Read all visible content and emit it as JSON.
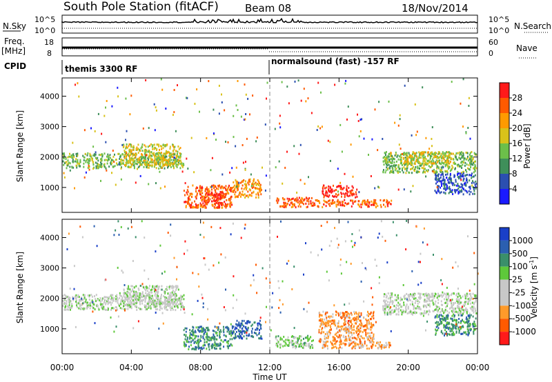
{
  "header": {
    "title": "South Pole Station (fitACF)",
    "beam": "Beam 08",
    "date": "18/Nov/2014"
  },
  "meta_panels": {
    "nsky_label": "N.Sky",
    "nsky_ticks": [
      "10^5",
      "10^0"
    ],
    "nsearch_label": "N.Search",
    "freq_label": "Freq.",
    "freq_unit": "[MHz]",
    "freq_ticks": [
      "18",
      "8"
    ],
    "nave_label": "Nave",
    "nave_ticks": [
      "60",
      "0"
    ],
    "cpid_label": "CPID",
    "cpid_segments": [
      {
        "start_hour": 0,
        "label": "themis 3300 RF"
      },
      {
        "start_hour": 12,
        "label": "normalsound (fast) -157 RF"
      }
    ]
  },
  "colors": {
    "power_scale": [
      "#1a1aff",
      "#2b4fb0",
      "#3f8f5a",
      "#6cbf4a",
      "#d9c21a",
      "#ff9a00",
      "#ff5a00",
      "#ff1a1a"
    ],
    "velocity_scale": [
      "#ff1a1a",
      "#ff5a00",
      "#ff9a2a",
      "#c8c8c8",
      "#c8c8c8",
      "#5ec83a",
      "#3a8f6a",
      "#2b5fb0",
      "#1a3fc8"
    ]
  },
  "chart_data": [
    {
      "type": "heatmap",
      "name": "power",
      "ylabel": "Slant Range [km]",
      "xlabel": "",
      "ylim": [
        180,
        4600
      ],
      "xlim_hours": [
        0,
        24
      ],
      "yticks": [
        "4000",
        "3000",
        "2000",
        "1000"
      ],
      "colorbar_label": "Power [dB]",
      "colorbar_ticks": [
        "28",
        "24",
        "20",
        "16",
        "12",
        "8",
        "4"
      ],
      "bands": [
        {
          "t0": 0,
          "t1": 7,
          "r0": 1650,
          "r1": 2150,
          "level": 3
        },
        {
          "t0": 3.5,
          "t1": 6.8,
          "r0": 1750,
          "r1": 2450,
          "level": 4
        },
        {
          "t0": 7,
          "t1": 9.8,
          "r0": 350,
          "r1": 1100,
          "level": 6
        },
        {
          "t0": 8.2,
          "t1": 9.4,
          "r0": 500,
          "r1": 900,
          "level": 7
        },
        {
          "t0": 9.8,
          "t1": 11.5,
          "r0": 700,
          "r1": 1300,
          "level": 5
        },
        {
          "t0": 12.3,
          "t1": 14.5,
          "r0": 380,
          "r1": 700,
          "level": 6
        },
        {
          "t0": 14.5,
          "t1": 19,
          "r0": 380,
          "r1": 620,
          "level": 6
        },
        {
          "t0": 15,
          "t1": 17,
          "r0": 700,
          "r1": 1100,
          "level": 7
        },
        {
          "t0": 18.5,
          "t1": 23.9,
          "r0": 1500,
          "r1": 2200,
          "level": 3
        },
        {
          "t0": 19.5,
          "t1": 22.5,
          "r0": 1800,
          "r1": 2200,
          "level": 4
        },
        {
          "t0": 21.5,
          "t1": 23.9,
          "r0": 800,
          "r1": 1500,
          "level": 1
        }
      ]
    },
    {
      "type": "heatmap",
      "name": "velocity",
      "ylabel": "Slant Range [km]",
      "xlabel": "Time UT",
      "ylim": [
        180,
        4600
      ],
      "xlim_hours": [
        0,
        24
      ],
      "xticks": [
        "00:00",
        "04:00",
        "08:00",
        "12:00",
        "16:00",
        "20:00",
        "00:00"
      ],
      "yticks": [
        "4000",
        "3000",
        "2000",
        "1000"
      ],
      "colorbar_label": "Velocity [m s",
      "colorbar_label_sup": "-1",
      "colorbar_label_end": "]",
      "colorbar_ticks": [
        "1000",
        "500",
        "100",
        "25",
        "-25",
        "-100",
        "-500",
        "-1000"
      ],
      "bands": [
        {
          "t0": 0,
          "t1": 7,
          "r0": 1650,
          "r1": 2150,
          "level": 4
        },
        {
          "t0": 3.5,
          "t1": 6.8,
          "r0": 1750,
          "r1": 2450,
          "level": 4
        },
        {
          "t0": 7,
          "t1": 9.8,
          "r0": 350,
          "r1": 1100,
          "level": 6
        },
        {
          "t0": 9.8,
          "t1": 11.5,
          "r0": 700,
          "r1": 1300,
          "level": 7
        },
        {
          "t0": 12.3,
          "t1": 14.5,
          "r0": 380,
          "r1": 800,
          "level": 5
        },
        {
          "t0": 14.8,
          "t1": 18,
          "r0": 600,
          "r1": 1600,
          "level": 2
        },
        {
          "t0": 15,
          "t1": 19,
          "r0": 380,
          "r1": 600,
          "level": 2
        },
        {
          "t0": 18.5,
          "t1": 23.9,
          "r0": 1500,
          "r1": 2200,
          "level": 4
        },
        {
          "t0": 21.5,
          "t1": 23.9,
          "r0": 800,
          "r1": 1500,
          "level": 6
        }
      ]
    }
  ]
}
